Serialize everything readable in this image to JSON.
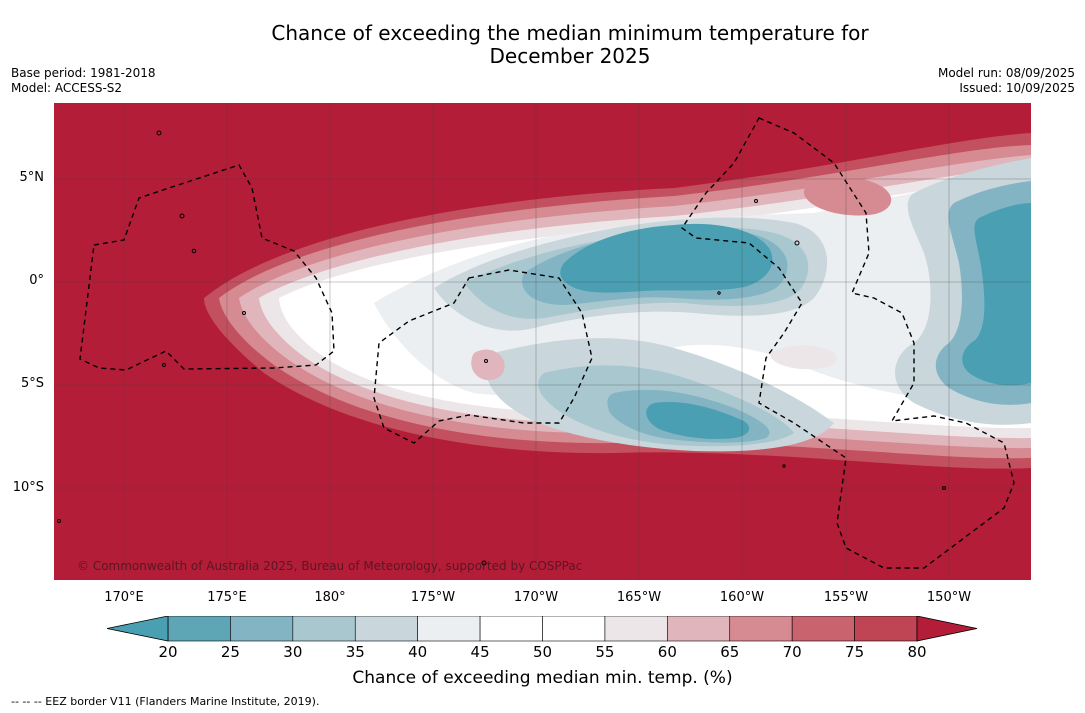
{
  "title_line1": "Chance of exceeding the median minimum temperature for",
  "title_line2": "December 2025",
  "base_period": "Base period: 1981-2018",
  "model": "Model: ACCESS-S2",
  "model_run": "Model run: 08/09/2025",
  "issued": "Issued: 10/09/2025",
  "copyright": "© Commonwealth of Australia 2025, Bureau of Meteorology, supported by COSPPac",
  "lat_labels": [
    "5°N",
    "0°",
    "5°S",
    "10°S"
  ],
  "lon_labels": [
    "170°E",
    "175°E",
    "180°",
    "175°W",
    "170°W",
    "165°W",
    "160°W",
    "155°W",
    "150°W"
  ],
  "colorbar": {
    "title": "Chance of exceeding median min. temp. (%)",
    "ticks": [
      "20",
      "25",
      "30",
      "35",
      "40",
      "45",
      "50",
      "55",
      "60",
      "65",
      "70",
      "75",
      "80"
    ],
    "colors": [
      "#5ea6b6",
      "#83b4c3",
      "#a9c7cf",
      "#c9d6dc",
      "#ebeff2",
      "#ffffff",
      "#ffffff",
      "#ede6e8",
      "#e0b5bb",
      "#d68a92",
      "#c9636d",
      "#bf4454",
      "#b31d38"
    ],
    "low_color": "#4aa0b2",
    "high_color": "#b31d38"
  },
  "footnote": "--  --  -- EEZ border V11 (Flanders Marine Institute, 2019)."
}
